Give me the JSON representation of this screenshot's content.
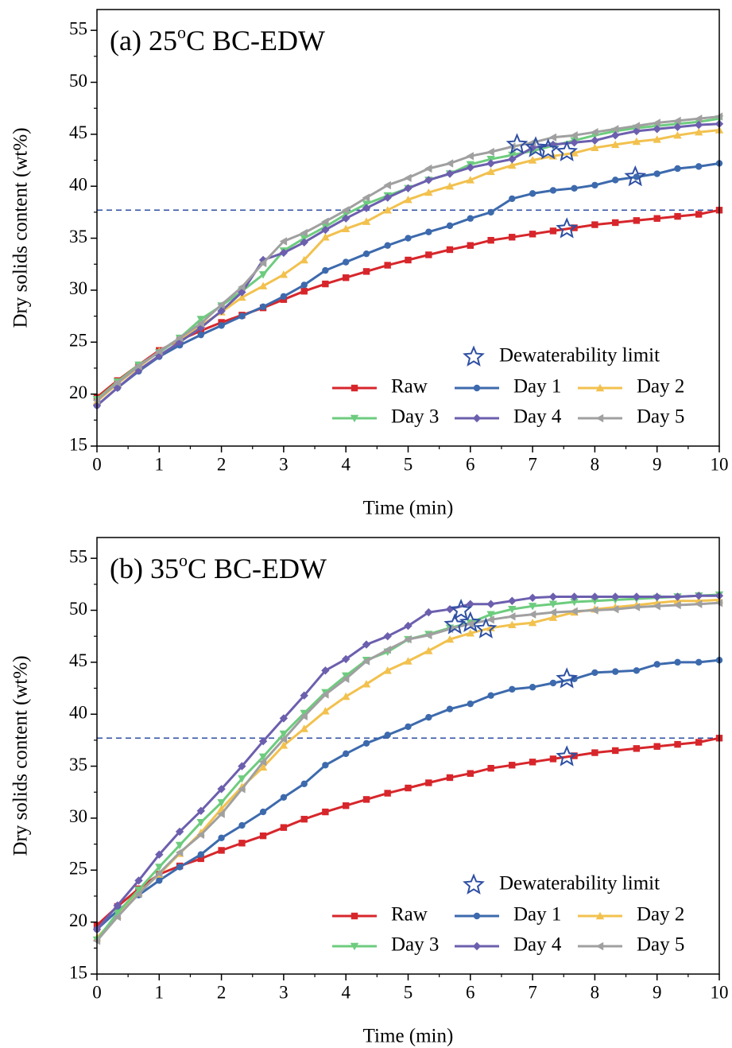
{
  "chart_data": [
    {
      "type": "line",
      "title": {
        "prefix": "(a) 25",
        "sup": "o",
        "suffix": "C BC-EDW"
      },
      "x_label": "Time (min)",
      "y_label": "Dry solids content (wt%)",
      "xlim": [
        0,
        10
      ],
      "ylim": [
        15,
        57
      ],
      "xticks": [
        0,
        1,
        2,
        3,
        4,
        5,
        6,
        7,
        8,
        9,
        10
      ],
      "yticks": [
        15,
        20,
        25,
        30,
        35,
        40,
        45,
        50,
        55
      ],
      "x": [
        0,
        0.33,
        0.67,
        1,
        1.33,
        1.67,
        2,
        2.33,
        2.67,
        3,
        3.33,
        3.67,
        4,
        4.33,
        4.67,
        5,
        5.33,
        5.67,
        6,
        6.33,
        6.67,
        7,
        7.33,
        7.67,
        8,
        8.33,
        8.67,
        9,
        9.33,
        9.67,
        10
      ],
      "series": [
        {
          "name": "Raw",
          "color": "#d7262b",
          "marker": "square",
          "values": [
            19.7,
            21.3,
            22.8,
            24.2,
            25.2,
            26.1,
            26.9,
            27.6,
            28.3,
            29.1,
            29.9,
            30.6,
            31.2,
            31.8,
            32.4,
            32.9,
            33.4,
            33.9,
            34.3,
            34.8,
            35.1,
            35.4,
            35.7,
            36.0,
            36.3,
            36.5,
            36.7,
            36.9,
            37.1,
            37.3,
            37.7
          ]
        },
        {
          "name": "Day 1",
          "color": "#3d6aad",
          "marker": "circle",
          "values": [
            18.9,
            20.6,
            22.2,
            23.6,
            24.7,
            25.7,
            26.6,
            27.5,
            28.4,
            29.4,
            30.5,
            31.9,
            32.7,
            33.5,
            34.3,
            35.0,
            35.6,
            36.2,
            36.9,
            37.5,
            38.8,
            39.3,
            39.6,
            39.8,
            40.1,
            40.6,
            40.9,
            41.2,
            41.7,
            41.9,
            42.2
          ]
        },
        {
          "name": "Day 2",
          "color": "#f2c14e",
          "marker": "triangle-up",
          "values": [
            19.3,
            21.0,
            22.6,
            24.1,
            25.3,
            26.6,
            27.9,
            29.3,
            30.4,
            31.5,
            32.9,
            35.1,
            35.9,
            36.6,
            37.7,
            38.7,
            39.4,
            40.0,
            40.6,
            41.4,
            42.0,
            42.5,
            42.9,
            43.2,
            43.7,
            44.0,
            44.3,
            44.5,
            44.9,
            45.2,
            45.4
          ]
        },
        {
          "name": "Day 3",
          "color": "#6dcc7e",
          "marker": "triangle-down",
          "values": [
            19.5,
            21.2,
            22.8,
            24.0,
            25.4,
            27.2,
            28.5,
            29.9,
            31.5,
            33.8,
            35.0,
            36.1,
            37.3,
            38.3,
            39.1,
            39.8,
            40.6,
            41.2,
            42.1,
            42.6,
            43.0,
            43.4,
            43.9,
            44.4,
            44.9,
            45.3,
            45.6,
            45.8,
            46.0,
            46.2,
            46.5
          ]
        },
        {
          "name": "Day 4",
          "color": "#6c5fae",
          "marker": "diamond",
          "values": [
            18.9,
            20.6,
            22.3,
            23.7,
            25.0,
            26.4,
            28.0,
            29.8,
            32.9,
            33.6,
            34.6,
            35.8,
            36.9,
            37.9,
            38.9,
            39.8,
            40.6,
            41.2,
            41.8,
            42.2,
            42.6,
            43.7,
            44.0,
            44.2,
            44.4,
            44.9,
            45.3,
            45.5,
            45.7,
            45.9,
            46.0
          ]
        },
        {
          "name": "Day 5",
          "color": "#a0a0a0",
          "marker": "triangle-left",
          "values": [
            19.4,
            21.1,
            22.7,
            24.1,
            25.4,
            26.8,
            28.6,
            30.3,
            32.6,
            34.7,
            35.5,
            36.6,
            37.7,
            38.9,
            40.1,
            40.8,
            41.7,
            42.2,
            42.9,
            43.3,
            43.8,
            44.2,
            44.7,
            44.9,
            45.2,
            45.5,
            45.8,
            46.1,
            46.3,
            46.5,
            46.7
          ]
        }
      ],
      "limit_points": {
        "name": "Dewaterability limit",
        "color": "#2e4fa3",
        "x": [
          6.75,
          7.05,
          7.25,
          7.55,
          8.65,
          7.55
        ],
        "values": [
          44.0,
          43.7,
          43.5,
          43.3,
          40.9,
          35.9
        ]
      },
      "reference_line": {
        "value": 37.7,
        "color": "#2e4fa3",
        "style": "dashed"
      }
    },
    {
      "type": "line",
      "title": {
        "prefix": "(b) 35",
        "sup": "o",
        "suffix": "C BC-EDW"
      },
      "x_label": "Time (min)",
      "y_label": "Dry solids content (wt%)",
      "xlim": [
        0,
        10
      ],
      "ylim": [
        15,
        57
      ],
      "xticks": [
        0,
        1,
        2,
        3,
        4,
        5,
        6,
        7,
        8,
        9,
        10
      ],
      "yticks": [
        15,
        20,
        25,
        30,
        35,
        40,
        45,
        50,
        55
      ],
      "x": [
        0,
        0.33,
        0.67,
        1,
        1.33,
        1.67,
        2,
        2.33,
        2.67,
        3,
        3.33,
        3.67,
        4,
        4.33,
        4.67,
        5,
        5.33,
        5.67,
        6,
        6.33,
        6.67,
        7,
        7.33,
        7.67,
        8,
        8.33,
        8.67,
        9,
        9.33,
        9.67,
        10
      ],
      "series": [
        {
          "name": "Raw",
          "color": "#d7262b",
          "marker": "square",
          "values": [
            19.7,
            21.5,
            23.2,
            24.6,
            25.4,
            26.1,
            26.9,
            27.6,
            28.3,
            29.1,
            29.9,
            30.6,
            31.2,
            31.8,
            32.4,
            32.9,
            33.4,
            33.9,
            34.3,
            34.8,
            35.1,
            35.4,
            35.7,
            36.0,
            36.3,
            36.5,
            36.7,
            36.9,
            37.1,
            37.3,
            37.7
          ]
        },
        {
          "name": "Day 1",
          "color": "#3d6aad",
          "marker": "circle",
          "values": [
            19.3,
            21.1,
            22.6,
            24.0,
            25.3,
            26.5,
            28.1,
            29.3,
            30.6,
            32.0,
            33.3,
            35.1,
            36.2,
            37.2,
            38.0,
            38.8,
            39.7,
            40.5,
            41.0,
            41.8,
            42.4,
            42.6,
            43.0,
            43.4,
            44.0,
            44.1,
            44.2,
            44.8,
            45.0,
            45.0,
            45.2
          ]
        },
        {
          "name": "Day 2",
          "color": "#f2c14e",
          "marker": "triangle-up",
          "values": [
            18.5,
            20.6,
            22.8,
            24.6,
            26.6,
            28.6,
            30.9,
            33.0,
            34.9,
            37.0,
            38.6,
            40.3,
            41.7,
            42.9,
            44.2,
            45.1,
            46.1,
            47.2,
            47.8,
            48.3,
            48.6,
            48.8,
            49.3,
            49.8,
            50.1,
            50.3,
            50.5,
            50.7,
            50.9,
            50.9,
            51.0
          ]
        },
        {
          "name": "Day 3",
          "color": "#6dcc7e",
          "marker": "triangle-down",
          "values": [
            18.3,
            20.9,
            23.1,
            25.3,
            27.4,
            29.6,
            31.5,
            33.8,
            35.9,
            38.1,
            40.1,
            42.1,
            43.7,
            45.2,
            46.0,
            47.2,
            47.7,
            48.3,
            48.8,
            49.6,
            50.1,
            50.4,
            50.6,
            50.8,
            50.9,
            51.0,
            51.1,
            51.2,
            51.3,
            51.4,
            51.5
          ]
        },
        {
          "name": "Day 4",
          "color": "#6c5fae",
          "marker": "diamond",
          "values": [
            19.3,
            21.6,
            24.0,
            26.5,
            28.7,
            30.7,
            32.8,
            35.0,
            37.4,
            39.6,
            41.8,
            44.2,
            45.3,
            46.7,
            47.5,
            48.5,
            49.8,
            50.1,
            50.6,
            50.6,
            50.9,
            51.2,
            51.3,
            51.3,
            51.3,
            51.3,
            51.3,
            51.3,
            51.3,
            51.4,
            51.4
          ]
        },
        {
          "name": "Day 5",
          "color": "#a0a0a0",
          "marker": "triangle-left",
          "values": [
            18.2,
            20.5,
            22.7,
            24.7,
            26.7,
            28.4,
            30.4,
            32.8,
            35.4,
            37.6,
            39.8,
            41.9,
            43.4,
            45.1,
            46.2,
            47.2,
            47.6,
            48.2,
            48.7,
            49.1,
            49.4,
            49.6,
            49.8,
            49.9,
            50.0,
            50.1,
            50.3,
            50.4,
            50.5,
            50.6,
            50.7
          ]
        }
      ],
      "limit_points": {
        "name": "Dewaterability limit",
        "color": "#2e4fa3",
        "x": [
          5.75,
          5.85,
          6.0,
          6.25,
          7.55,
          7.55
        ],
        "values": [
          48.6,
          50.0,
          48.8,
          48.2,
          43.4,
          35.9
        ]
      },
      "reference_line": {
        "value": 37.7,
        "color": "#2e4fa3",
        "style": "dashed"
      }
    }
  ]
}
